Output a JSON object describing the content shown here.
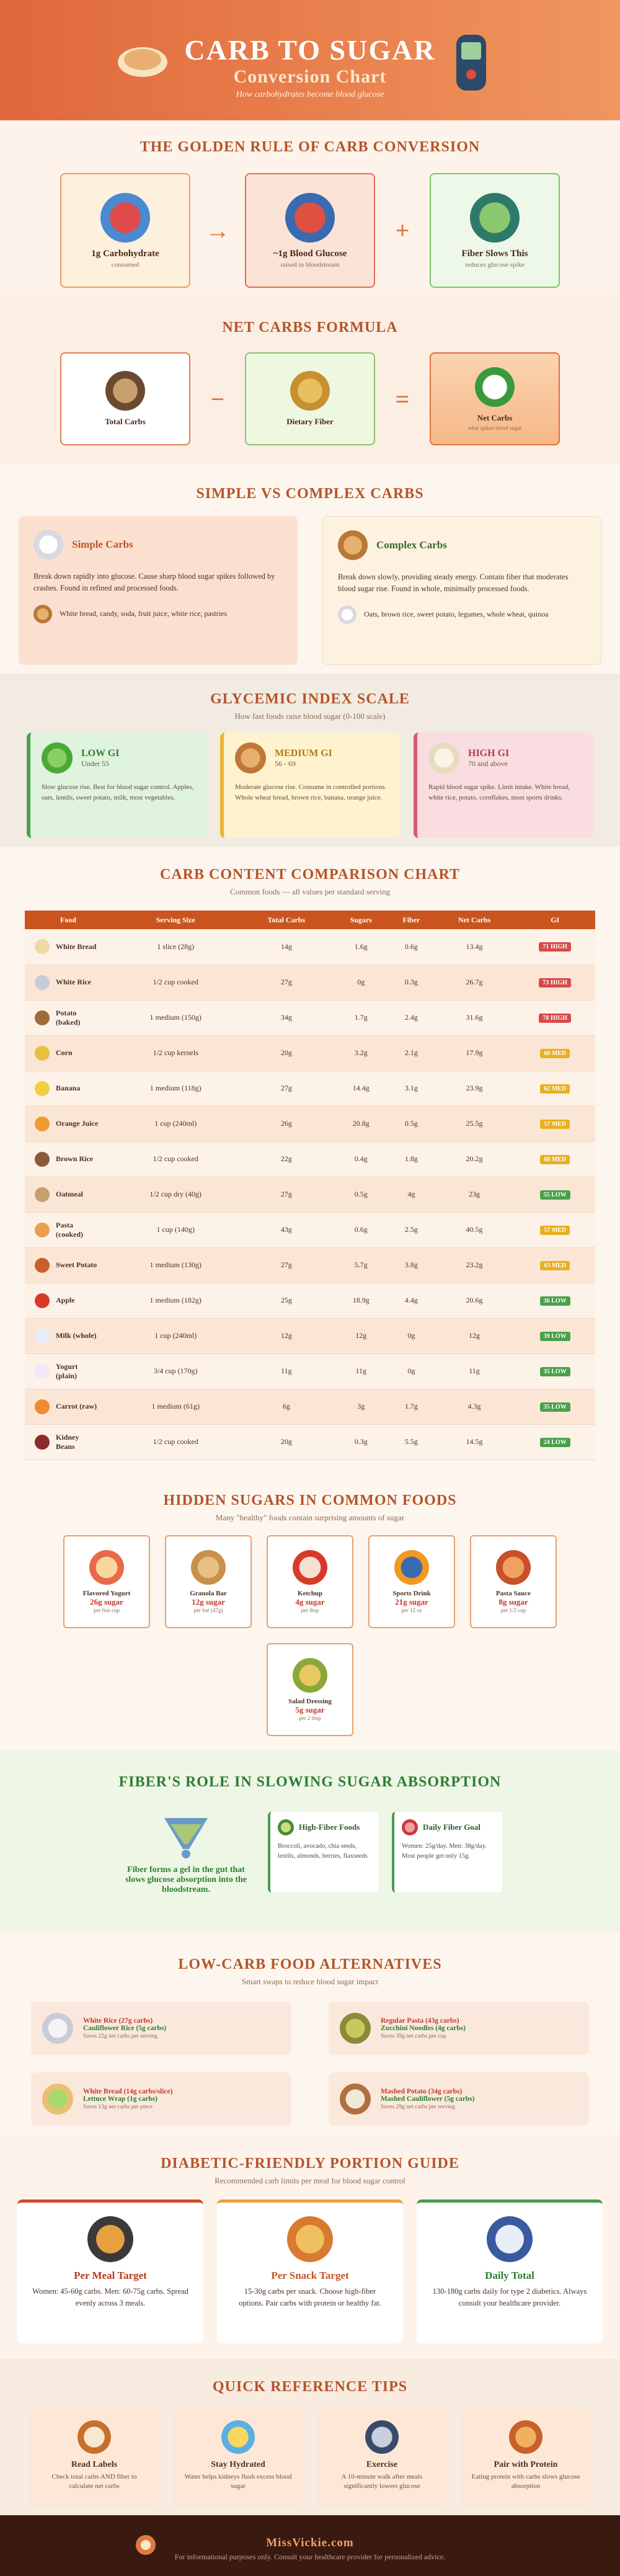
{
  "header": {
    "title": "CARB TO SUGAR",
    "subtitle": "Conversion Chart",
    "tagline": "How carbohydrates become blood glucose"
  },
  "golden_rule": {
    "title": "THE GOLDEN RULE OF CARB CONVERSION",
    "items": [
      {
        "label": "1g Carbohydrate",
        "note": "consumed"
      },
      {
        "label": "~1g Blood Glucose",
        "note": "raised in bloodstream"
      },
      {
        "label": "Fiber Slows This",
        "note": "reduces glucose spike"
      }
    ],
    "operators": [
      "→",
      "+"
    ]
  },
  "net_carbs": {
    "title": "NET CARBS FORMULA",
    "items": [
      {
        "label": "Total Carbs"
      },
      {
        "label": "Dietary Fiber"
      },
      {
        "label": "Net Carbs",
        "note": "what spikes blood sugar"
      }
    ],
    "operators": [
      "−",
      "="
    ]
  },
  "carb_types": {
    "title": "SIMPLE VS COMPLEX CARBS",
    "cards": [
      {
        "name": "Simple Carbs",
        "description": "Break down rapidly into glucose. Cause sharp blood sugar spikes followed by crashes. Found in refined and processed foods.",
        "examples": "White bread, candy, soda, fruit juice, white rice, pastries"
      },
      {
        "name": "Complex Carbs",
        "description": "Break down slowly, providing steady energy. Contain fiber that moderates blood sugar rise. Found in whole, minimally processed foods.",
        "examples": "Oats, brown rice, sweet potato, legumes, whole wheat, quinoa"
      }
    ]
  },
  "glycemic_index": {
    "title": "GLYCEMIC INDEX SCALE",
    "subtitle": "How fast foods raise blood sugar (0-100 scale)",
    "levels": [
      {
        "name": "LOW GI",
        "range": "Under 55",
        "description": "Slow glucose rise. Best for blood sugar control. Apples, oats, lentils, sweet potato, milk, most vegetables."
      },
      {
        "name": "MEDIUM GI",
        "range": "56 - 69",
        "description": "Moderate glucose rise. Consume in controlled portions. Whole wheat bread, brown rice, banana, orange juice."
      },
      {
        "name": "HIGH GI",
        "range": "70 and above",
        "description": "Rapid blood sugar spike. Limit intake. White bread, white rice, potato, cornflakes, most sports drinks."
      }
    ]
  },
  "carb_table": {
    "title": "CARB CONTENT COMPARISON CHART",
    "subtitle": "Common foods — all values per standard serving",
    "columns": [
      "Food",
      "Serving Size",
      "Total Carbs",
      "Sugars",
      "Fiber",
      "Net Carbs",
      "GI"
    ],
    "rows": [
      [
        "White Bread",
        "1 slice (28g)",
        "14g",
        "1.6g",
        "0.6g",
        "13.4g",
        "71 HIGH"
      ],
      [
        "White Rice",
        "1/2 cup cooked",
        "27g",
        "0g",
        "0.3g",
        "26.7g",
        "73 HIGH"
      ],
      [
        "Potato (baked)",
        "1 medium (150g)",
        "34g",
        "1.7g",
        "2.4g",
        "31.6g",
        "78 HIGH"
      ],
      [
        "Corn",
        "1/2 cup kernels",
        "20g",
        "3.2g",
        "2.1g",
        "17.9g",
        "60 MED"
      ],
      [
        "Banana",
        "1 medium (118g)",
        "27g",
        "14.4g",
        "3.1g",
        "23.9g",
        "62 MED"
      ],
      [
        "Orange Juice",
        "1 cup (240ml)",
        "26g",
        "20.8g",
        "0.5g",
        "25.5g",
        "57 MED"
      ],
      [
        "Brown Rice",
        "1/2 cup cooked",
        "22g",
        "0.4g",
        "1.8g",
        "20.2g",
        "68 MED"
      ],
      [
        "Oatmeal",
        "1/2 cup dry (40g)",
        "27g",
        "0.5g",
        "4g",
        "23g",
        "55 LOW"
      ],
      [
        "Pasta (cooked)",
        "1 cup (140g)",
        "43g",
        "0.6g",
        "2.5g",
        "40.5g",
        "57 MED"
      ],
      [
        "Sweet Potato",
        "1 medium (130g)",
        "27g",
        "5.7g",
        "3.8g",
        "23.2g",
        "63 MED"
      ],
      [
        "Apple",
        "1 medium (182g)",
        "25g",
        "18.9g",
        "4.4g",
        "20.6g",
        "36 LOW"
      ],
      [
        "Milk (whole)",
        "1 cup (240ml)",
        "12g",
        "12g",
        "0g",
        "12g",
        "39 LOW"
      ],
      [
        "Yogurt (plain)",
        "3/4 cup (170g)",
        "11g",
        "11g",
        "0g",
        "11g",
        "35 LOW"
      ],
      [
        "Carrot (raw)",
        "1 medium (61g)",
        "6g",
        "3g",
        "1.7g",
        "4.3g",
        "35 LOW"
      ],
      [
        "Kidney Beans",
        "1/2 cup cooked",
        "20g",
        "0.3g",
        "5.5g",
        "14.5g",
        "24 LOW"
      ]
    ]
  },
  "hidden_sugars": {
    "title": "HIDDEN SUGARS IN COMMON FOODS",
    "subtitle": "Many \"healthy\" foods contain surprising amounts of sugar",
    "items": [
      {
        "name": "Flavored Yogurt",
        "sugar": "26g sugar",
        "serving": "per 6oz cup"
      },
      {
        "name": "Granola Bar",
        "sugar": "12g sugar",
        "serving": "per bar (47g)"
      },
      {
        "name": "Ketchup",
        "sugar": "4g sugar",
        "serving": "per tbsp"
      },
      {
        "name": "Sports Drink",
        "sugar": "21g sugar",
        "serving": "per 12 oz"
      },
      {
        "name": "Pasta Sauce",
        "sugar": "8g sugar",
        "serving": "per 1/2 cup"
      },
      {
        "name": "Salad Dressing",
        "sugar": "5g sugar",
        "serving": "per 2 tbsp"
      }
    ]
  },
  "fiber": {
    "title": "FIBER'S ROLE IN SLOWING SUGAR ABSORPTION",
    "caption": "Fiber forms a gel in the gut that slows glucose absorption into the bloodstream.",
    "cards": [
      {
        "title": "High-Fiber Foods",
        "text": "Broccoli, avocado, chia seeds, lentils, almonds, berries, flaxseeds"
      },
      {
        "title": "Daily Fiber Goal",
        "text": "Women: 25g/day. Men: 38g/day. Most people get only 15g."
      }
    ]
  },
  "alternatives": {
    "title": "LOW-CARB FOOD ALTERNATIVES",
    "subtitle": "Smart swaps to reduce blood sugar impact",
    "items": [
      {
        "from": "White Rice (27g carbs)",
        "to": "Cauliflower Rice (5g carbs)",
        "savings": "Saves 22g net carbs per serving"
      },
      {
        "from": "Regular Pasta (43g carbs)",
        "to": "Zucchini Noodles (4g carbs)",
        "savings": "Saves 39g net carbs per cup"
      },
      {
        "from": "White Bread (14g carbs/slice)",
        "to": "Lettuce Wrap (1g carbs)",
        "savings": "Saves 13g net carbs per piece"
      },
      {
        "from": "Mashed Potato (34g carbs)",
        "to": "Mashed Cauliflower (5g carbs)",
        "savings": "Saves 29g net carbs per serving"
      }
    ]
  },
  "portion_guide": {
    "title": "DIABETIC-FRIENDLY PORTION GUIDE",
    "subtitle": "Recommended carb limits per meal for blood sugar control",
    "cards": [
      {
        "title": "Per Meal Target",
        "text": "Women: 45-60g carbs. Men: 60-75g carbs. Spread evenly across 3 meals."
      },
      {
        "title": "Per Snack Target",
        "text": "15-30g carbs per snack. Choose high-fiber options. Pair carbs with protein or healthy fat."
      },
      {
        "title": "Daily Total",
        "text": "130-180g carbs daily for type 2 diabetics. Always consult your healthcare provider."
      }
    ]
  },
  "tips": {
    "title": "QUICK REFERENCE TIPS",
    "items": [
      {
        "title": "Read Labels",
        "text": "Check total carbs AND fiber to calculate net carbs"
      },
      {
        "title": "Stay Hydrated",
        "text": "Water helps kidneys flush excess blood sugar"
      },
      {
        "title": "Exercise",
        "text": "A 10-minute walk after meals significantly lowers glucose"
      },
      {
        "title": "Pair with Protein",
        "text": "Eating protein with carbs slows glucose absorption"
      }
    ]
  },
  "footer": {
    "site": "MissVickie.com",
    "disclaimer": "For informational purposes only. Consult your healthcare provider for personalized advice."
  }
}
